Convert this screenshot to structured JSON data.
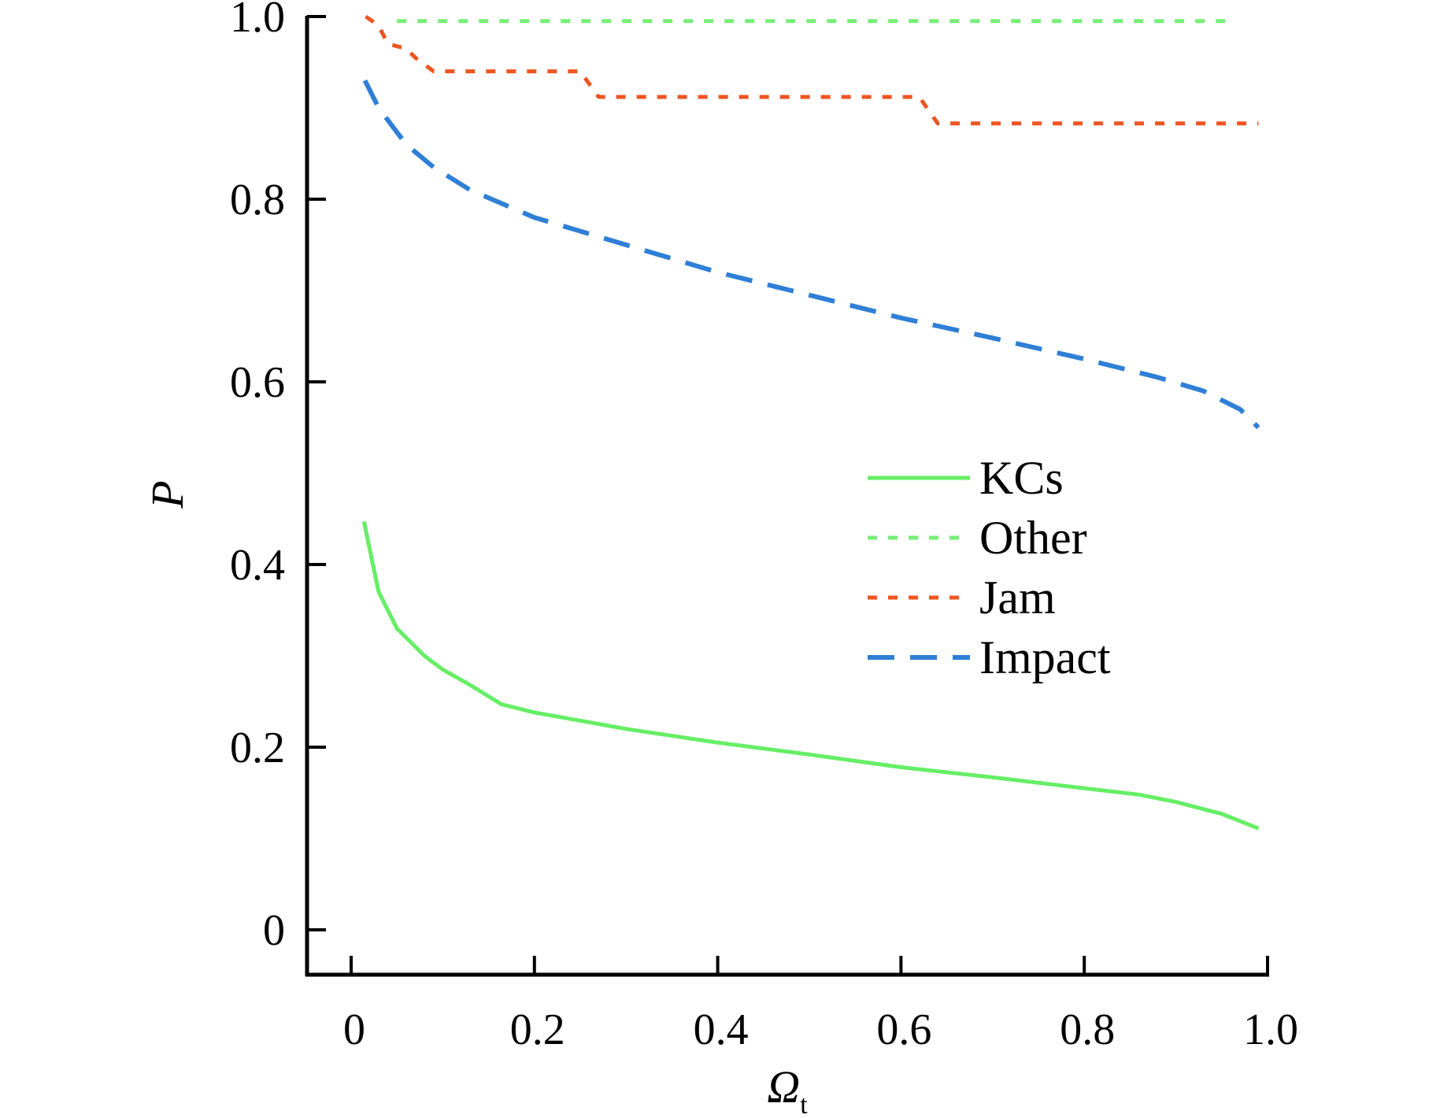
{
  "chart_data": {
    "type": "line",
    "title": "",
    "xlabel": "Ω",
    "xlabel_subscript": "t",
    "ylabel": "P",
    "xlim": [
      -0.05,
      1.0
    ],
    "ylim": [
      -0.05,
      1.0
    ],
    "xticks": [
      0,
      0.2,
      0.4,
      0.6,
      0.8,
      1.0
    ],
    "xtick_labels": [
      "0",
      "0.2",
      "0.4",
      "0.6",
      "0.8",
      "1.0"
    ],
    "yticks": [
      0,
      0.2,
      0.4,
      0.6,
      0.8,
      1.0
    ],
    "ytick_labels": [
      "0",
      "0.2",
      "0.4",
      "0.6",
      "0.8",
      "1.0"
    ],
    "grid": false,
    "legend_position": "center-right",
    "series": [
      {
        "name": "KCs",
        "style": "solid",
        "color": "#66ee66",
        "x": [
          0.014,
          0.03,
          0.05,
          0.08,
          0.1,
          0.13,
          0.164,
          0.2,
          0.3,
          0.4,
          0.5,
          0.6,
          0.7,
          0.8,
          0.86,
          0.9,
          0.95,
          0.99
        ],
        "y": [
          0.447,
          0.37,
          0.33,
          0.3,
          0.285,
          0.268,
          0.247,
          0.238,
          0.22,
          0.205,
          0.192,
          0.178,
          0.167,
          0.155,
          0.148,
          0.14,
          0.127,
          0.111
        ]
      },
      {
        "name": "Other",
        "style": "dotted",
        "color": "#77ee77",
        "x": [
          0.05,
          0.2,
          0.4,
          0.6,
          0.8,
          0.96
        ],
        "y": [
          0.995,
          0.995,
          0.995,
          0.995,
          0.995,
          0.995
        ]
      },
      {
        "name": "Jam",
        "style": "dotted",
        "color": "#ee5522",
        "x": [
          0.016,
          0.03,
          0.04,
          0.06,
          0.07,
          0.09,
          0.25,
          0.27,
          0.62,
          0.64,
          0.99
        ],
        "y": [
          1.0,
          0.99,
          0.97,
          0.965,
          0.955,
          0.94,
          0.94,
          0.912,
          0.912,
          0.883,
          0.883
        ]
      },
      {
        "name": "Impact",
        "style": "dashed",
        "color": "#2f7fd6",
        "x": [
          0.015,
          0.03,
          0.06,
          0.09,
          0.13,
          0.2,
          0.3,
          0.4,
          0.5,
          0.6,
          0.7,
          0.8,
          0.88,
          0.93,
          0.97,
          0.99
        ],
        "y": [
          0.93,
          0.9,
          0.86,
          0.835,
          0.81,
          0.78,
          0.75,
          0.72,
          0.695,
          0.67,
          0.648,
          0.625,
          0.605,
          0.59,
          0.57,
          0.55
        ]
      }
    ]
  }
}
